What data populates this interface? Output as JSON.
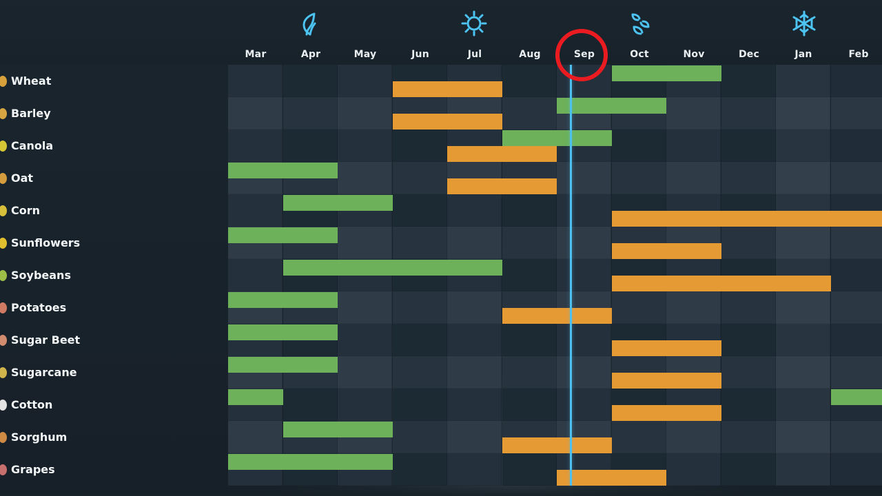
{
  "months": [
    "Mar",
    "Apr",
    "May",
    "Jun",
    "Jul",
    "Aug",
    "Sep",
    "Oct",
    "Nov",
    "Dec",
    "Jan",
    "Feb"
  ],
  "current_month": "Sep",
  "season_icons": [
    "leaf-icon",
    "sun-icon",
    "leaf-pair-icon",
    "snowflake-icon"
  ],
  "colors": {
    "planting": "#6db15a",
    "harvest": "#e69a34",
    "current_line": "#4ec0f0",
    "highlight_ring": "#eb1b22"
  },
  "crops": [
    {
      "name": "Wheat",
      "icon": "wheat-icon",
      "icon_color": "#d8a13b",
      "planting": [
        {
          "start_month": "Oct",
          "end_month": "Nov"
        }
      ],
      "harvest": [
        {
          "start_month": "Jun",
          "end_month": "Jul"
        }
      ]
    },
    {
      "name": "Barley",
      "icon": "barley-icon",
      "icon_color": "#d7a643",
      "planting": [
        {
          "start_month": "Sep",
          "end_month": "Oct"
        }
      ],
      "harvest": [
        {
          "start_month": "Jun",
          "end_month": "Jul"
        }
      ]
    },
    {
      "name": "Canola",
      "icon": "canola-icon",
      "icon_color": "#d5c636",
      "planting": [
        {
          "start_month": "Aug",
          "end_month": "Sep"
        }
      ],
      "harvest": [
        {
          "start_month": "Jul",
          "end_month": "Aug"
        }
      ]
    },
    {
      "name": "Oat",
      "icon": "oat-icon",
      "icon_color": "#d49c3c",
      "planting": [
        {
          "start_month": "Mar",
          "end_month": "Apr"
        }
      ],
      "harvest": [
        {
          "start_month": "Jul",
          "end_month": "Aug"
        }
      ]
    },
    {
      "name": "Corn",
      "icon": "corn-icon",
      "icon_color": "#d7bf3c",
      "planting": [
        {
          "start_month": "Apr",
          "end_month": "May"
        }
      ],
      "harvest": [
        {
          "start_month": "Oct",
          "end_month": "Feb"
        }
      ]
    },
    {
      "name": "Sunflowers",
      "icon": "sunflower-icon",
      "icon_color": "#e0be2e",
      "planting": [
        {
          "start_month": "Mar",
          "end_month": "Apr"
        }
      ],
      "harvest": [
        {
          "start_month": "Oct",
          "end_month": "Nov"
        }
      ]
    },
    {
      "name": "Soybeans",
      "icon": "soybean-icon",
      "icon_color": "#9dbf48",
      "planting": [
        {
          "start_month": "Apr",
          "end_month": "Jul"
        }
      ],
      "harvest": [
        {
          "start_month": "Oct",
          "end_month": "Jan"
        }
      ]
    },
    {
      "name": "Potatoes",
      "icon": "potato-icon",
      "icon_color": "#d17a63",
      "planting": [
        {
          "start_month": "Mar",
          "end_month": "Apr"
        }
      ],
      "harvest": [
        {
          "start_month": "Aug",
          "end_month": "Sep"
        }
      ]
    },
    {
      "name": "Sugar Beet",
      "icon": "sugar-beet-icon",
      "icon_color": "#d18b6e",
      "planting": [
        {
          "start_month": "Mar",
          "end_month": "Apr"
        }
      ],
      "harvest": [
        {
          "start_month": "Oct",
          "end_month": "Nov"
        }
      ]
    },
    {
      "name": "Sugarcane",
      "icon": "sugarcane-icon",
      "icon_color": "#d0b34a",
      "planting": [
        {
          "start_month": "Mar",
          "end_month": "Apr"
        }
      ],
      "harvest": [
        {
          "start_month": "Oct",
          "end_month": "Nov"
        }
      ]
    },
    {
      "name": "Cotton",
      "icon": "cotton-icon",
      "icon_color": "#e3e3e3",
      "planting": [
        {
          "start_month": "Mar",
          "end_month": "Mar"
        },
        {
          "start_month": "Feb",
          "end_month": "Feb"
        }
      ],
      "harvest": [
        {
          "start_month": "Oct",
          "end_month": "Nov"
        }
      ]
    },
    {
      "name": "Sorghum",
      "icon": "sorghum-icon",
      "icon_color": "#cf8a43",
      "planting": [
        {
          "start_month": "Apr",
          "end_month": "May"
        }
      ],
      "harvest": [
        {
          "start_month": "Aug",
          "end_month": "Sep"
        }
      ]
    },
    {
      "name": "Grapes",
      "icon": "grapes-icon",
      "icon_color": "#c76f6d",
      "planting": [
        {
          "start_month": "Mar",
          "end_month": "May"
        }
      ],
      "harvest": [
        {
          "start_month": "Sep",
          "end_month": "Oct"
        }
      ]
    }
  ]
}
